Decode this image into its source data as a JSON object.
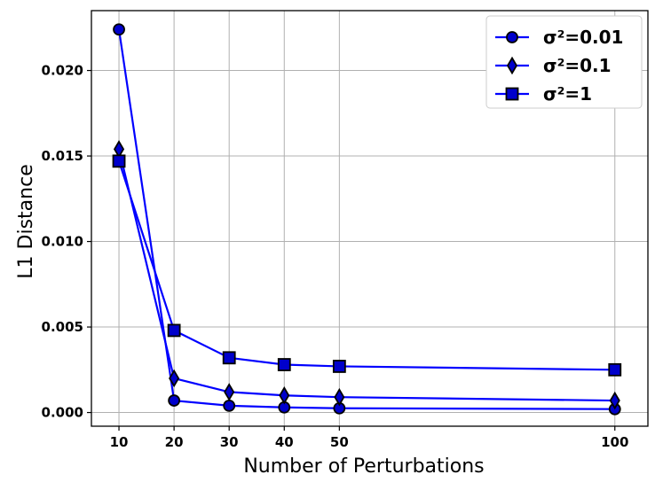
{
  "chart_data": {
    "type": "line",
    "xlabel": "Number of Perturbations",
    "ylabel": "L1 Distance",
    "x": [
      10,
      20,
      30,
      40,
      50,
      100
    ],
    "xlim": [
      5,
      106
    ],
    "ylim": [
      -0.0008,
      0.0235
    ],
    "xticks": [
      "10",
      "20",
      "30",
      "40",
      "50",
      "100"
    ],
    "yticks": [
      "0.000",
      "0.005",
      "0.010",
      "0.015",
      "0.020"
    ],
    "grid": true,
    "legend_position": "top-right",
    "colors": {
      "line": "#0000ff",
      "marker_fill": "#0000cc",
      "marker_edge": "#000000"
    },
    "series": [
      {
        "name": "σ²=0.01",
        "marker": "circle",
        "values": [
          0.0224,
          0.0007,
          0.0004,
          0.0003,
          0.00025,
          0.0002
        ]
      },
      {
        "name": "σ²=0.1",
        "marker": "diamond",
        "values": [
          0.0154,
          0.002,
          0.0012,
          0.001,
          0.0009,
          0.0007
        ]
      },
      {
        "name": "σ²=1",
        "marker": "square",
        "values": [
          0.0147,
          0.0048,
          0.0032,
          0.0028,
          0.0027,
          0.0025
        ]
      }
    ]
  }
}
